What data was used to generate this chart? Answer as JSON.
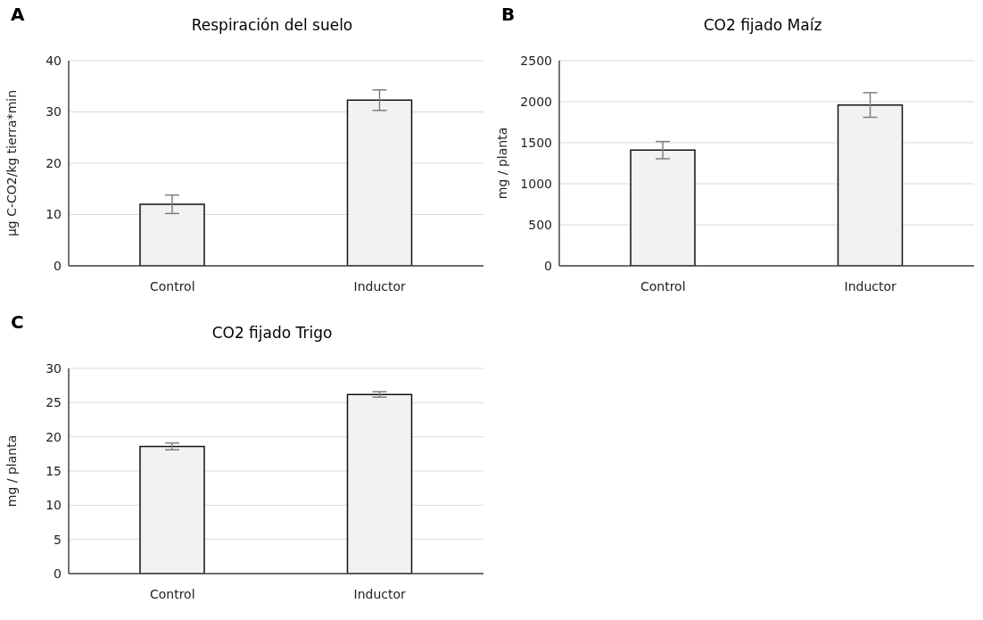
{
  "chart_data": [
    {
      "type": "bar",
      "title": "Respiración del suelo",
      "ylabel": "µg C-CO2/kg tierra*min",
      "annotations": [
        "A"
      ],
      "categories": [
        "Control",
        "Inductor"
      ],
      "values": [
        12,
        32.3
      ],
      "errors": [
        1.8,
        2
      ],
      "color": "#f2f2f2",
      "ylim": [
        0,
        40
      ],
      "yticks": [
        0,
        10,
        20,
        30,
        40
      ],
      "grid": "y"
    },
    {
      "type": "bar",
      "title": "CO2 fijado Maíz",
      "ylabel": "mg / planta",
      "annotations": [
        "B"
      ],
      "categories": [
        "Control",
        "Inductor"
      ],
      "values": [
        1410,
        1960
      ],
      "errors": [
        105,
        150
      ],
      "color": "#f2f2f2",
      "ylim": [
        0,
        2500
      ],
      "yticks": [
        0,
        500,
        1000,
        1500,
        2000,
        2500
      ],
      "grid": "y"
    },
    {
      "type": "bar",
      "title": "CO2 fijado Trigo",
      "ylabel": "mg / planta",
      "annotations": [
        "C"
      ],
      "categories": [
        "Control",
        "Inductor"
      ],
      "values": [
        18.6,
        26.2
      ],
      "errors": [
        0.5,
        0.4
      ],
      "color": "#f2f2f2",
      "ylim": [
        0,
        30
      ],
      "yticks": [
        0,
        5,
        10,
        15,
        20,
        25,
        30
      ],
      "grid": "y"
    }
  ]
}
